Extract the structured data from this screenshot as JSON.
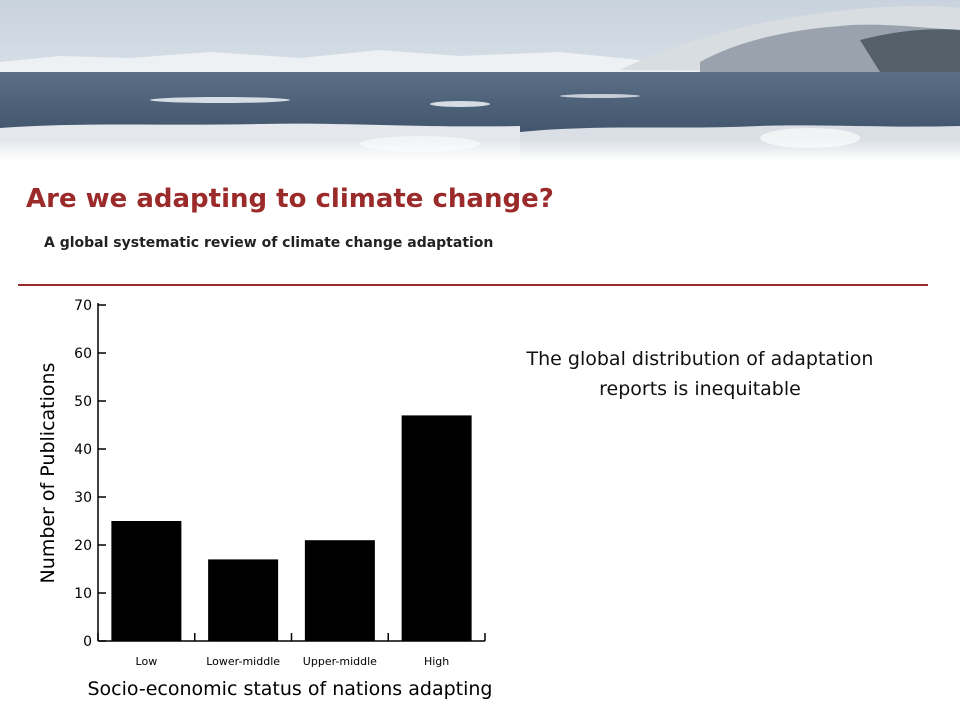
{
  "slide": {
    "title": "Are we adapting to climate change?",
    "subtitle": "A global systematic review of climate change adaptation",
    "statement": "The global distribution of adaptation reports is inequitable",
    "accent_color": "#9b2b2b",
    "banner": "arctic-coastline-photo"
  },
  "chart_data": {
    "type": "bar",
    "categories": [
      "Low",
      "Lower-middle",
      "Upper-middle",
      "High"
    ],
    "values": [
      25,
      17,
      21,
      47
    ],
    "xlabel": "Socio-economic status of nations adapting",
    "ylabel": "Number of Publications",
    "ylim": [
      0,
      70
    ],
    "yticks": [
      0,
      10,
      20,
      30,
      40,
      50,
      60,
      70
    ],
    "bar_color": "#000000",
    "grid": false
  }
}
